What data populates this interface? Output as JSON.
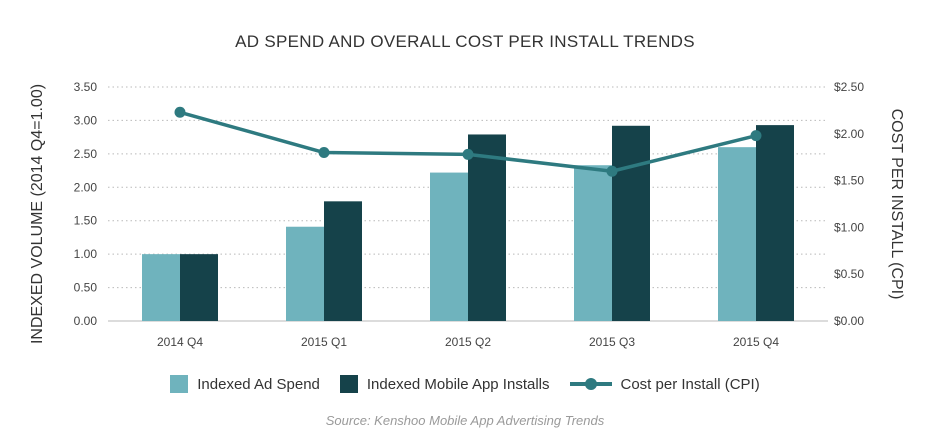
{
  "chart_data": {
    "type": "bar",
    "title": "AD SPEND AND OVERALL COST PER INSTALL TRENDS",
    "categories": [
      "2014 Q4",
      "2015 Q1",
      "2015 Q2",
      "2015 Q3",
      "2015 Q4"
    ],
    "series": [
      {
        "name": "Indexed Ad Spend",
        "type": "bar",
        "axis": "left",
        "color": "#6fb3bd",
        "values": [
          1.0,
          1.41,
          2.22,
          2.33,
          2.6
        ]
      },
      {
        "name": "Indexed Mobile App Installs",
        "type": "bar",
        "axis": "left",
        "color": "#15424a",
        "values": [
          1.0,
          1.79,
          2.79,
          2.92,
          2.93
        ]
      },
      {
        "name": "Cost per Install (CPI)",
        "type": "line",
        "axis": "right",
        "color": "#2e7a80",
        "values": [
          2.23,
          1.8,
          1.78,
          1.6,
          1.98
        ]
      }
    ],
    "ylabel": "INDEXED VOLUME (2014 Q4=1.00)",
    "ylabel_right": "COST PER INSTALL (CPI)",
    "ylim": [
      0,
      3.5
    ],
    "ylim_right": [
      0,
      2.5
    ],
    "yticks": [
      "0.00",
      "0.50",
      "1.00",
      "1.50",
      "2.00",
      "2.50",
      "3.00",
      "3.50"
    ],
    "yticks_right": [
      "$0.00",
      "$0.50",
      "$1.00",
      "$1.50",
      "$2.00",
      "$2.50"
    ],
    "grid": "dotted horizontal",
    "legend": "bottom"
  },
  "source": "Source: Kenshoo Mobile App Advertising Trends"
}
